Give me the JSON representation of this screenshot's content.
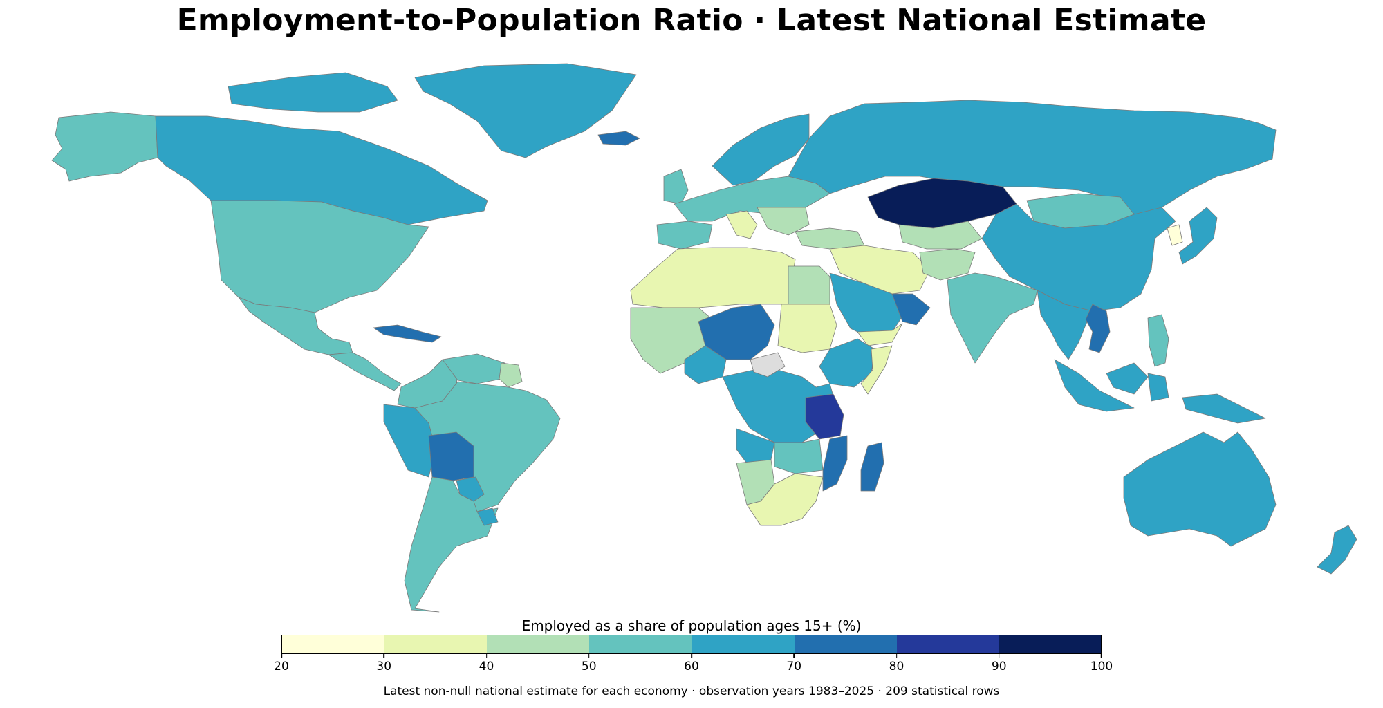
{
  "title": "Employment-to-Population Ratio · Latest National Estimate",
  "legend": {
    "label": "Employed as a share of population ages 15+ (%)",
    "bins": [
      {
        "from": 20,
        "to": 30,
        "color": "#ffffd9"
      },
      {
        "from": 30,
        "to": 40,
        "color": "#e8f6b1"
      },
      {
        "from": 40,
        "to": 50,
        "color": "#b2e0b6"
      },
      {
        "from": 50,
        "to": 60,
        "color": "#64c3be"
      },
      {
        "from": 60,
        "to": 70,
        "color": "#2fa3c5"
      },
      {
        "from": 70,
        "to": 80,
        "color": "#226faf"
      },
      {
        "from": 80,
        "to": 90,
        "color": "#24399a"
      },
      {
        "from": 90,
        "to": 100,
        "color": "#081d58"
      }
    ],
    "ticks": [
      "20",
      "30",
      "40",
      "50",
      "60",
      "70",
      "80",
      "90",
      "100"
    ],
    "no_data_color": "#dddddd"
  },
  "footnote": "Latest non-null national estimate for each economy · observation years 1983–2025 · 209 statistical rows",
  "regions": [
    {
      "name": "Alaska",
      "bin": 3
    },
    {
      "name": "Canada",
      "bin": 4
    },
    {
      "name": "Greenland",
      "bin": 4
    },
    {
      "name": "Arctic Islands",
      "bin": 4
    },
    {
      "name": "United States",
      "bin": 3
    },
    {
      "name": "Mexico",
      "bin": 3
    },
    {
      "name": "Central America",
      "bin": 3
    },
    {
      "name": "Cuba",
      "bin": 5
    },
    {
      "name": "Colombia",
      "bin": 3
    },
    {
      "name": "Venezuela",
      "bin": 3
    },
    {
      "name": "Guyana",
      "bin": 2
    },
    {
      "name": "Peru",
      "bin": 4
    },
    {
      "name": "Brazil",
      "bin": 3
    },
    {
      "name": "Bolivia",
      "bin": 5
    },
    {
      "name": "Paraguay",
      "bin": 4
    },
    {
      "name": "Argentina",
      "bin": 3
    },
    {
      "name": "Uruguay",
      "bin": 4
    },
    {
      "name": "Iceland",
      "bin": 5
    },
    {
      "name": "UK",
      "bin": 3
    },
    {
      "name": "Scandinavia",
      "bin": 4
    },
    {
      "name": "Western Europe",
      "bin": 3
    },
    {
      "name": "Iberia",
      "bin": 3
    },
    {
      "name": "Italy",
      "bin": 1
    },
    {
      "name": "Balkans",
      "bin": 2
    },
    {
      "name": "Turkey",
      "bin": 2
    },
    {
      "name": "Russia",
      "bin": 4
    },
    {
      "name": "Kazakhstan",
      "bin": 7
    },
    {
      "name": "Central Asia",
      "bin": 2
    },
    {
      "name": "Mongolia",
      "bin": 3
    },
    {
      "name": "China",
      "bin": 4
    },
    {
      "name": "Korea",
      "bin": 0
    },
    {
      "name": "Japan",
      "bin": 4
    },
    {
      "name": "Middle East",
      "bin": 1
    },
    {
      "name": "Saudi Arabia",
      "bin": 4
    },
    {
      "name": "Oman",
      "bin": 5
    },
    {
      "name": "Yemen",
      "bin": 1
    },
    {
      "name": "Afghanistan",
      "bin": 2
    },
    {
      "name": "India",
      "bin": 3
    },
    {
      "name": "Southeast Asia",
      "bin": 4
    },
    {
      "name": "Vietnam",
      "bin": 5
    },
    {
      "name": "Philippines",
      "bin": 3
    },
    {
      "name": "Indonesia",
      "bin": 4
    },
    {
      "name": "Papua New Guinea",
      "bin": 4
    },
    {
      "name": "Australia",
      "bin": 4
    },
    {
      "name": "New Zealand",
      "bin": 4
    },
    {
      "name": "North Africa",
      "bin": 1
    },
    {
      "name": "Egypt",
      "bin": 2
    },
    {
      "name": "Sudan",
      "bin": 1
    },
    {
      "name": "West Africa",
      "bin": 2
    },
    {
      "name": "Niger-Chad",
      "bin": 5
    },
    {
      "name": "Nigeria",
      "bin": 4
    },
    {
      "name": "Ethiopia",
      "bin": 4
    },
    {
      "name": "Somalia",
      "bin": 1
    },
    {
      "name": "Central Africa",
      "bin": 4
    },
    {
      "name": "CAR",
      "bin": -1
    },
    {
      "name": "Angola",
      "bin": 4
    },
    {
      "name": "Tanzania",
      "bin": 6
    },
    {
      "name": "Mozambique",
      "bin": 5
    },
    {
      "name": "Madagascar",
      "bin": 5
    },
    {
      "name": "Zambia",
      "bin": 3
    },
    {
      "name": "Namibia",
      "bin": 2
    },
    {
      "name": "South Africa",
      "bin": 1
    }
  ]
}
